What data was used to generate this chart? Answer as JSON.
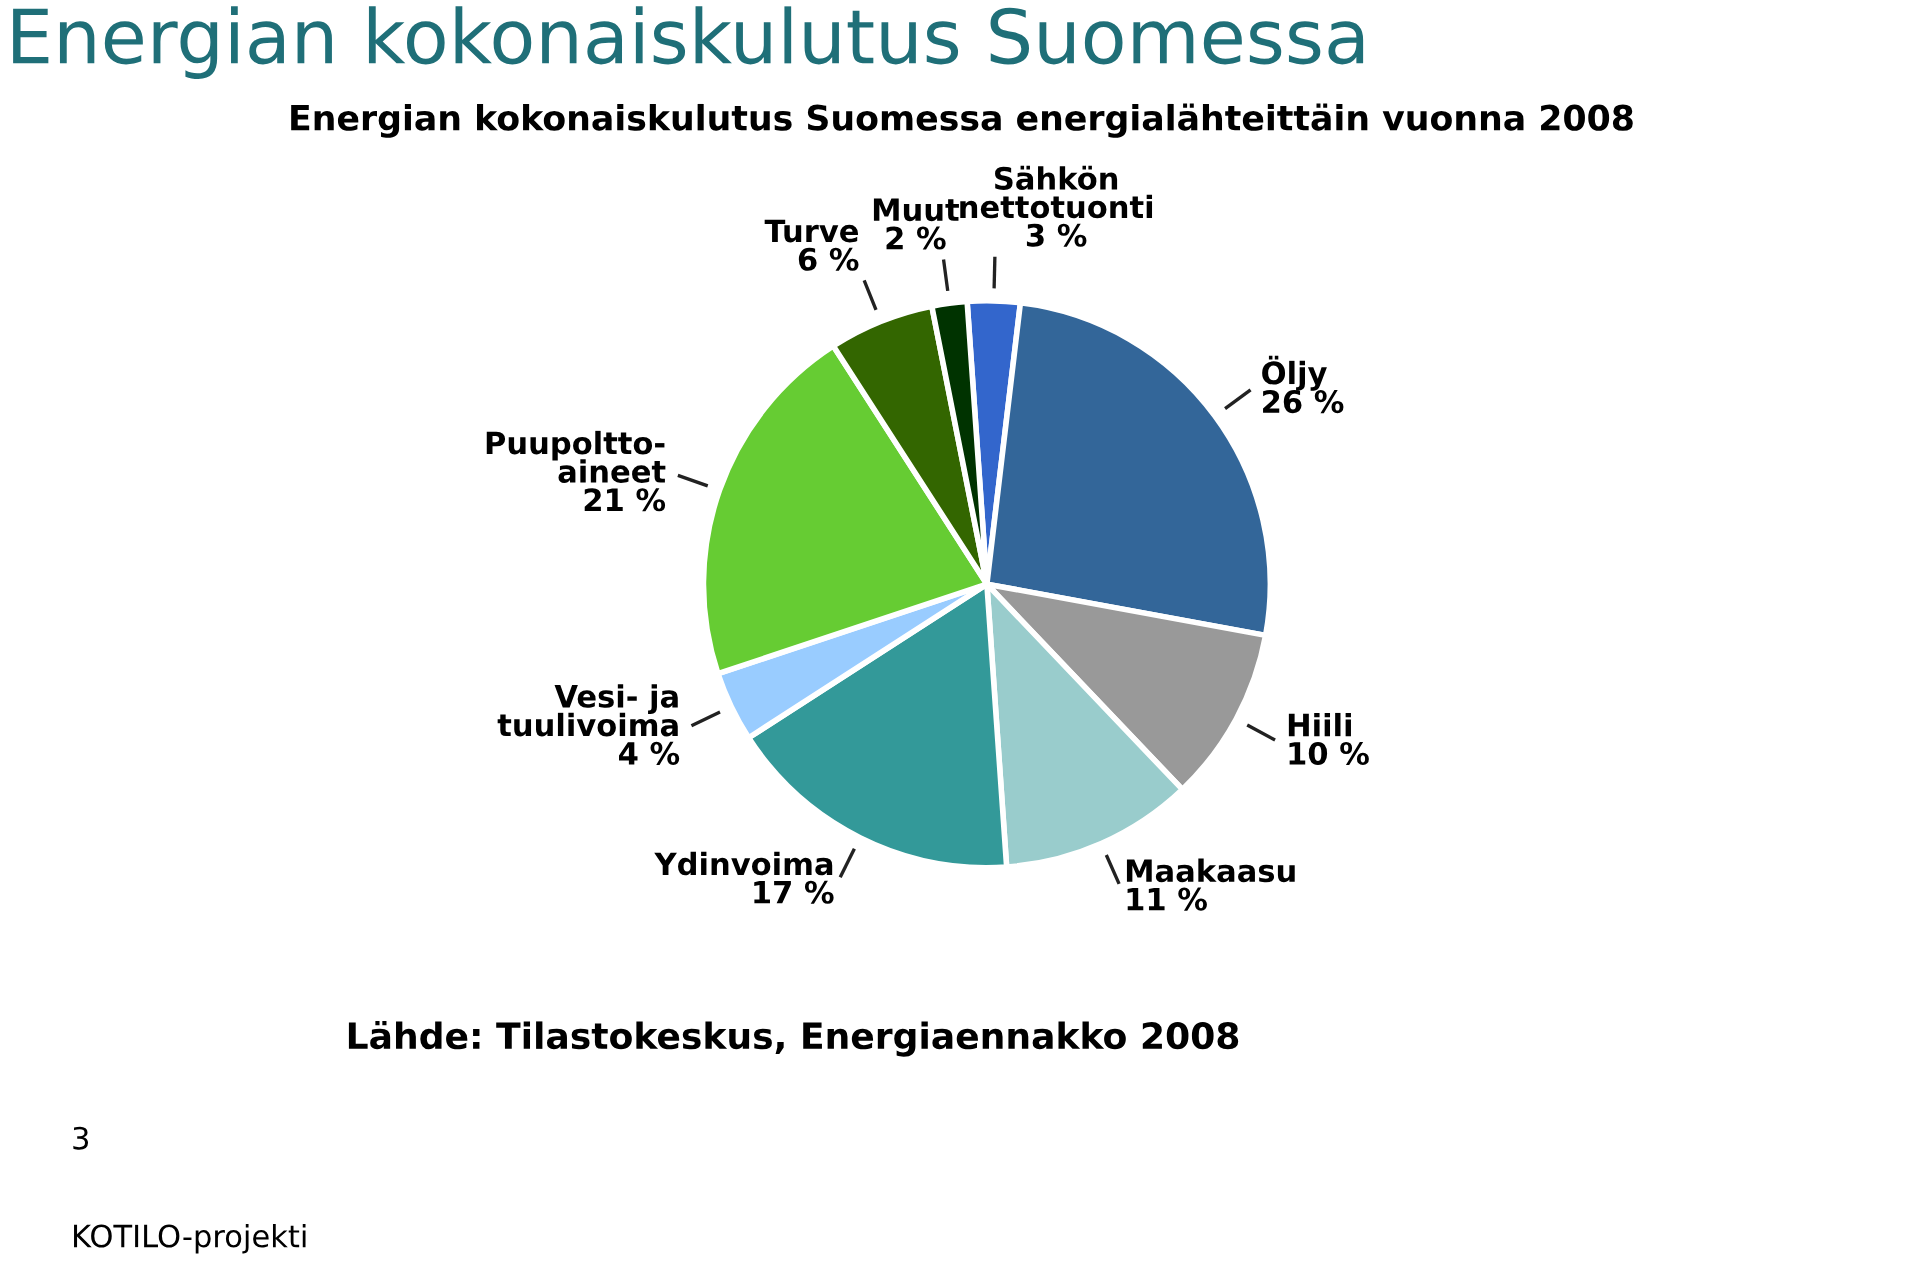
{
  "chart_data": {
    "type": "pie",
    "title": "Energian kokonaiskulutus Suomessa",
    "subtitle": "Energian kokonaiskulutus Suomessa energialähteittäin vuonna 2008",
    "categories": [
      "Sähkön\nnettotuonti",
      "Öljy",
      "Hiili",
      "Maakaasu",
      "Ydinvoima",
      "Vesi- ja\ntuulivoima",
      "Puupoltto-\naineet",
      "Turve",
      "Muut"
    ],
    "values": [
      3,
      26,
      10,
      11,
      17,
      4,
      21,
      6,
      2
    ],
    "value_labels": [
      "3 %",
      "26 %",
      "10 %",
      "11 %",
      "17 %",
      "4 %",
      "21 %",
      "6 %",
      "2 %"
    ],
    "colors": [
      "#3366cc",
      "#336699",
      "#999999",
      "#99cccc",
      "#339999",
      "#99ccff",
      "#66cc33",
      "#336600",
      "#003300"
    ],
    "annotations": [
      "Lähde: Tilastokeskus, Energiaennakko 2008",
      "3",
      "KOTILO-projekti"
    ]
  }
}
